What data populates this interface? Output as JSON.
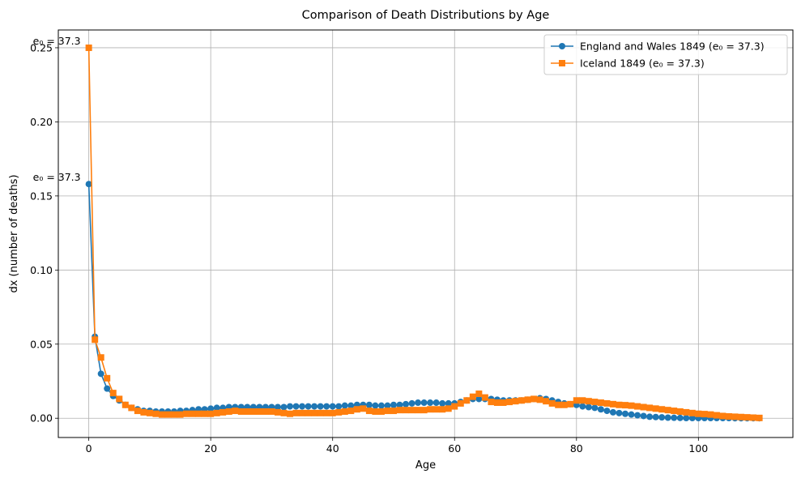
{
  "chart_data": {
    "type": "line",
    "title": "Comparison of Death Distributions by Age",
    "xlabel": "Age",
    "ylabel": "dx (number of deaths)",
    "xlim": [
      -5,
      115.5
    ],
    "ylim": [
      -0.013,
      0.262
    ],
    "xticks": [
      0,
      20,
      40,
      60,
      80,
      100
    ],
    "yticks": [
      0.0,
      0.05,
      0.1,
      0.15,
      0.2,
      0.25
    ],
    "ytick_labels": [
      "0.00",
      "0.05",
      "0.10",
      "0.15",
      "0.20",
      "0.25"
    ],
    "grid": true,
    "legend_position": "top-right",
    "annotations": [
      {
        "text": "e₀ = 37.3",
        "x": 0,
        "y": 0.158
      },
      {
        "text": "e₀ = 37.3",
        "x": 0,
        "y": 0.25
      }
    ],
    "series": [
      {
        "name": "England and Wales 1849 (e₀ = 37.3)",
        "color": "#1f77b4",
        "marker": "circle",
        "x": [
          0,
          1,
          2,
          3,
          4,
          5,
          6,
          7,
          8,
          9,
          10,
          11,
          12,
          13,
          14,
          15,
          16,
          17,
          18,
          19,
          20,
          21,
          22,
          23,
          24,
          25,
          26,
          27,
          28,
          29,
          30,
          31,
          32,
          33,
          34,
          35,
          36,
          37,
          38,
          39,
          40,
          41,
          42,
          43,
          44,
          45,
          46,
          47,
          48,
          49,
          50,
          51,
          52,
          53,
          54,
          55,
          56,
          57,
          58,
          59,
          60,
          61,
          62,
          63,
          64,
          65,
          66,
          67,
          68,
          69,
          70,
          71,
          72,
          73,
          74,
          75,
          76,
          77,
          78,
          79,
          80,
          81,
          82,
          83,
          84,
          85,
          86,
          87,
          88,
          89,
          90,
          91,
          92,
          93,
          94,
          95,
          96,
          97,
          98,
          99,
          100,
          101,
          102,
          103,
          104,
          105,
          106,
          107,
          108,
          109,
          110
        ],
        "values": [
          0.158,
          0.055,
          0.03,
          0.02,
          0.015,
          0.012,
          0.009,
          0.007,
          0.006,
          0.005,
          0.005,
          0.0045,
          0.0045,
          0.0045,
          0.0045,
          0.005,
          0.005,
          0.0055,
          0.006,
          0.006,
          0.0065,
          0.007,
          0.007,
          0.0075,
          0.0075,
          0.0075,
          0.0075,
          0.0075,
          0.0075,
          0.0075,
          0.0075,
          0.0075,
          0.0075,
          0.008,
          0.008,
          0.008,
          0.008,
          0.008,
          0.008,
          0.008,
          0.008,
          0.008,
          0.0085,
          0.0085,
          0.009,
          0.009,
          0.009,
          0.0085,
          0.0085,
          0.0085,
          0.009,
          0.009,
          0.0095,
          0.01,
          0.0105,
          0.0105,
          0.0105,
          0.0105,
          0.01,
          0.01,
          0.01,
          0.011,
          0.012,
          0.013,
          0.013,
          0.013,
          0.013,
          0.0125,
          0.012,
          0.012,
          0.012,
          0.012,
          0.0125,
          0.013,
          0.0135,
          0.013,
          0.012,
          0.011,
          0.01,
          0.0095,
          0.009,
          0.008,
          0.0075,
          0.007,
          0.006,
          0.005,
          0.004,
          0.0035,
          0.003,
          0.0025,
          0.002,
          0.0015,
          0.001,
          0.0008,
          0.0006,
          0.0004,
          0.0003,
          0.0002,
          0.0001,
          0.0001,
          0.0001,
          0.0001,
          0.0001,
          0.0001,
          0.0001,
          0.0001,
          0.0,
          0.0,
          0.0,
          0.0,
          0.0
        ]
      },
      {
        "name": "Iceland 1849 (e₀ = 37.3)",
        "color": "#ff7f0e",
        "marker": "square",
        "x": [
          0,
          1,
          2,
          3,
          4,
          5,
          6,
          7,
          8,
          9,
          10,
          11,
          12,
          13,
          14,
          15,
          16,
          17,
          18,
          19,
          20,
          21,
          22,
          23,
          24,
          25,
          26,
          27,
          28,
          29,
          30,
          31,
          32,
          33,
          34,
          35,
          36,
          37,
          38,
          39,
          40,
          41,
          42,
          43,
          44,
          45,
          46,
          47,
          48,
          49,
          50,
          51,
          52,
          53,
          54,
          55,
          56,
          57,
          58,
          59,
          60,
          61,
          62,
          63,
          64,
          65,
          66,
          67,
          68,
          69,
          70,
          71,
          72,
          73,
          74,
          75,
          76,
          77,
          78,
          79,
          80,
          81,
          82,
          83,
          84,
          85,
          86,
          87,
          88,
          89,
          90,
          91,
          92,
          93,
          94,
          95,
          96,
          97,
          98,
          99,
          100,
          101,
          102,
          103,
          104,
          105,
          106,
          107,
          108,
          109,
          110
        ],
        "values": [
          0.25,
          0.053,
          0.041,
          0.027,
          0.017,
          0.013,
          0.009,
          0.007,
          0.005,
          0.004,
          0.0035,
          0.003,
          0.0025,
          0.0025,
          0.0025,
          0.0025,
          0.003,
          0.003,
          0.003,
          0.003,
          0.003,
          0.0035,
          0.004,
          0.0045,
          0.005,
          0.0045,
          0.0045,
          0.0045,
          0.0045,
          0.0045,
          0.0045,
          0.004,
          0.0035,
          0.003,
          0.0035,
          0.0035,
          0.0035,
          0.0035,
          0.0035,
          0.0035,
          0.0035,
          0.004,
          0.0045,
          0.005,
          0.006,
          0.0065,
          0.005,
          0.0045,
          0.0045,
          0.005,
          0.005,
          0.0055,
          0.0055,
          0.0055,
          0.0055,
          0.0055,
          0.006,
          0.006,
          0.006,
          0.0065,
          0.008,
          0.01,
          0.012,
          0.0145,
          0.0165,
          0.014,
          0.011,
          0.0105,
          0.0105,
          0.011,
          0.0115,
          0.012,
          0.0125,
          0.013,
          0.0125,
          0.0115,
          0.01,
          0.009,
          0.009,
          0.0095,
          0.012,
          0.012,
          0.0115,
          0.011,
          0.0105,
          0.01,
          0.0095,
          0.009,
          0.0088,
          0.0085,
          0.008,
          0.0075,
          0.007,
          0.0065,
          0.006,
          0.0055,
          0.005,
          0.0045,
          0.004,
          0.0035,
          0.003,
          0.0028,
          0.0025,
          0.002,
          0.0015,
          0.0012,
          0.001,
          0.0008,
          0.0006,
          0.0004,
          0.0002
        ]
      }
    ]
  }
}
